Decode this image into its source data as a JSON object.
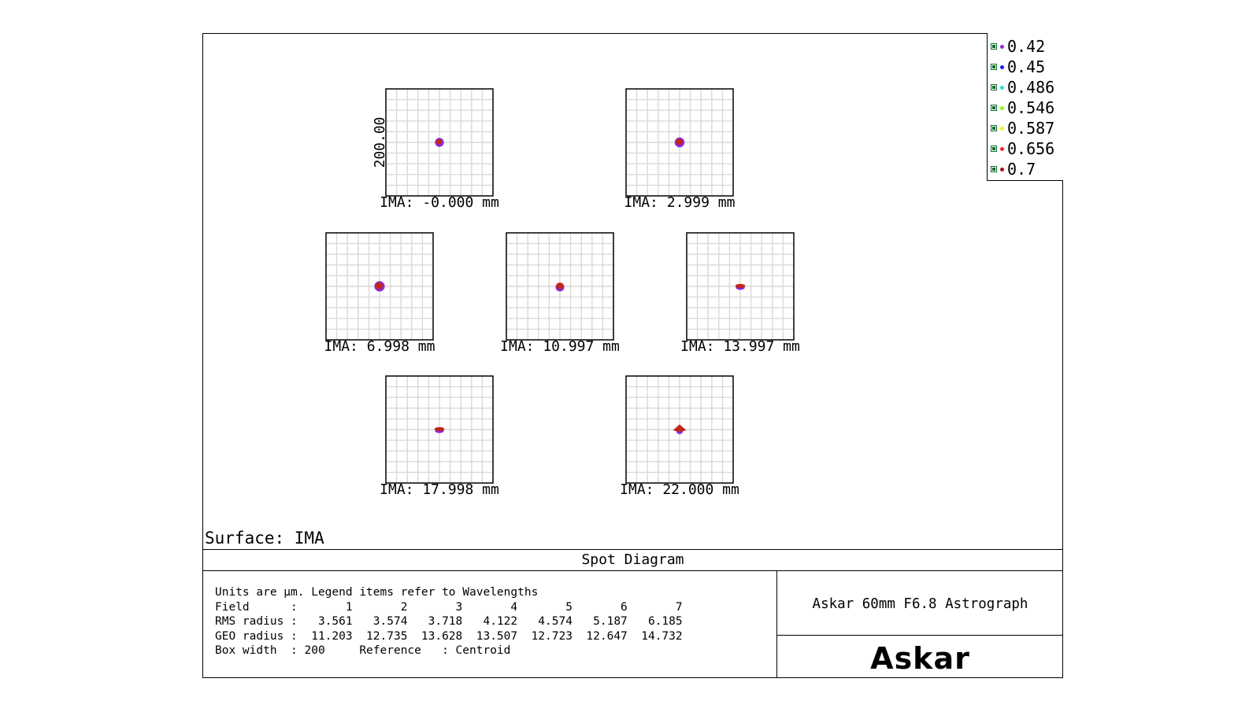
{
  "chart_data": {
    "type": "scatter",
    "title": "Spot Diagram",
    "surface_label": "Surface: IMA",
    "axis_label": "200.00",
    "grid": true,
    "legend_placement": "top-right",
    "legend": {
      "entries": [
        {
          "label": "0.42",
          "color": "#8a2be2"
        },
        {
          "label": "0.45",
          "color": "#1a1aff"
        },
        {
          "label": "0.486",
          "color": "#20e0e0"
        },
        {
          "label": "0.546",
          "color": "#7fff20"
        },
        {
          "label": "0.587",
          "color": "#f0f020"
        },
        {
          "label": "0.656",
          "color": "#ff2020"
        },
        {
          "label": "0.7",
          "color": "#a01010"
        }
      ]
    },
    "fields": [
      {
        "label": "IMA: -0.000 mm",
        "spot_shape": "circle",
        "spot_radius_um": 11.203
      },
      {
        "label": "IMA: 2.999 mm",
        "spot_shape": "circle",
        "spot_radius_um": 12.735
      },
      {
        "label": "IMA: 6.998 mm",
        "spot_shape": "circle",
        "spot_radius_um": 13.628
      },
      {
        "label": "IMA: 10.997 mm",
        "spot_shape": "oval",
        "spot_radius_um": 13.507
      },
      {
        "label": "IMA: 13.997 mm",
        "spot_shape": "flat",
        "spot_radius_um": 12.723
      },
      {
        "label": "IMA: 17.998 mm",
        "spot_shape": "flat",
        "spot_radius_um": 12.647
      },
      {
        "label": "IMA: 22.000 mm",
        "spot_shape": "diamond",
        "spot_radius_um": 14.732
      }
    ],
    "box_width_um": 200,
    "colors": {
      "outer": "#8a2be2",
      "inner": "#c0261a",
      "grid": "#d9d9d9"
    }
  },
  "info": {
    "text": "Units are µm. Legend items refer to Wavelengths\nField      :       1       2       3       4       5       6       7\nRMS radius :   3.561   3.574   3.718   4.122   4.574   5.187   6.185\nGEO radius :  11.203  12.735  13.628  13.507  12.723  12.647  14.732\nBox width  : 200     Reference   : Centroid"
  },
  "product": {
    "name": "Askar 60mm F6.8 Astrograph",
    "brand": "Askar"
  }
}
